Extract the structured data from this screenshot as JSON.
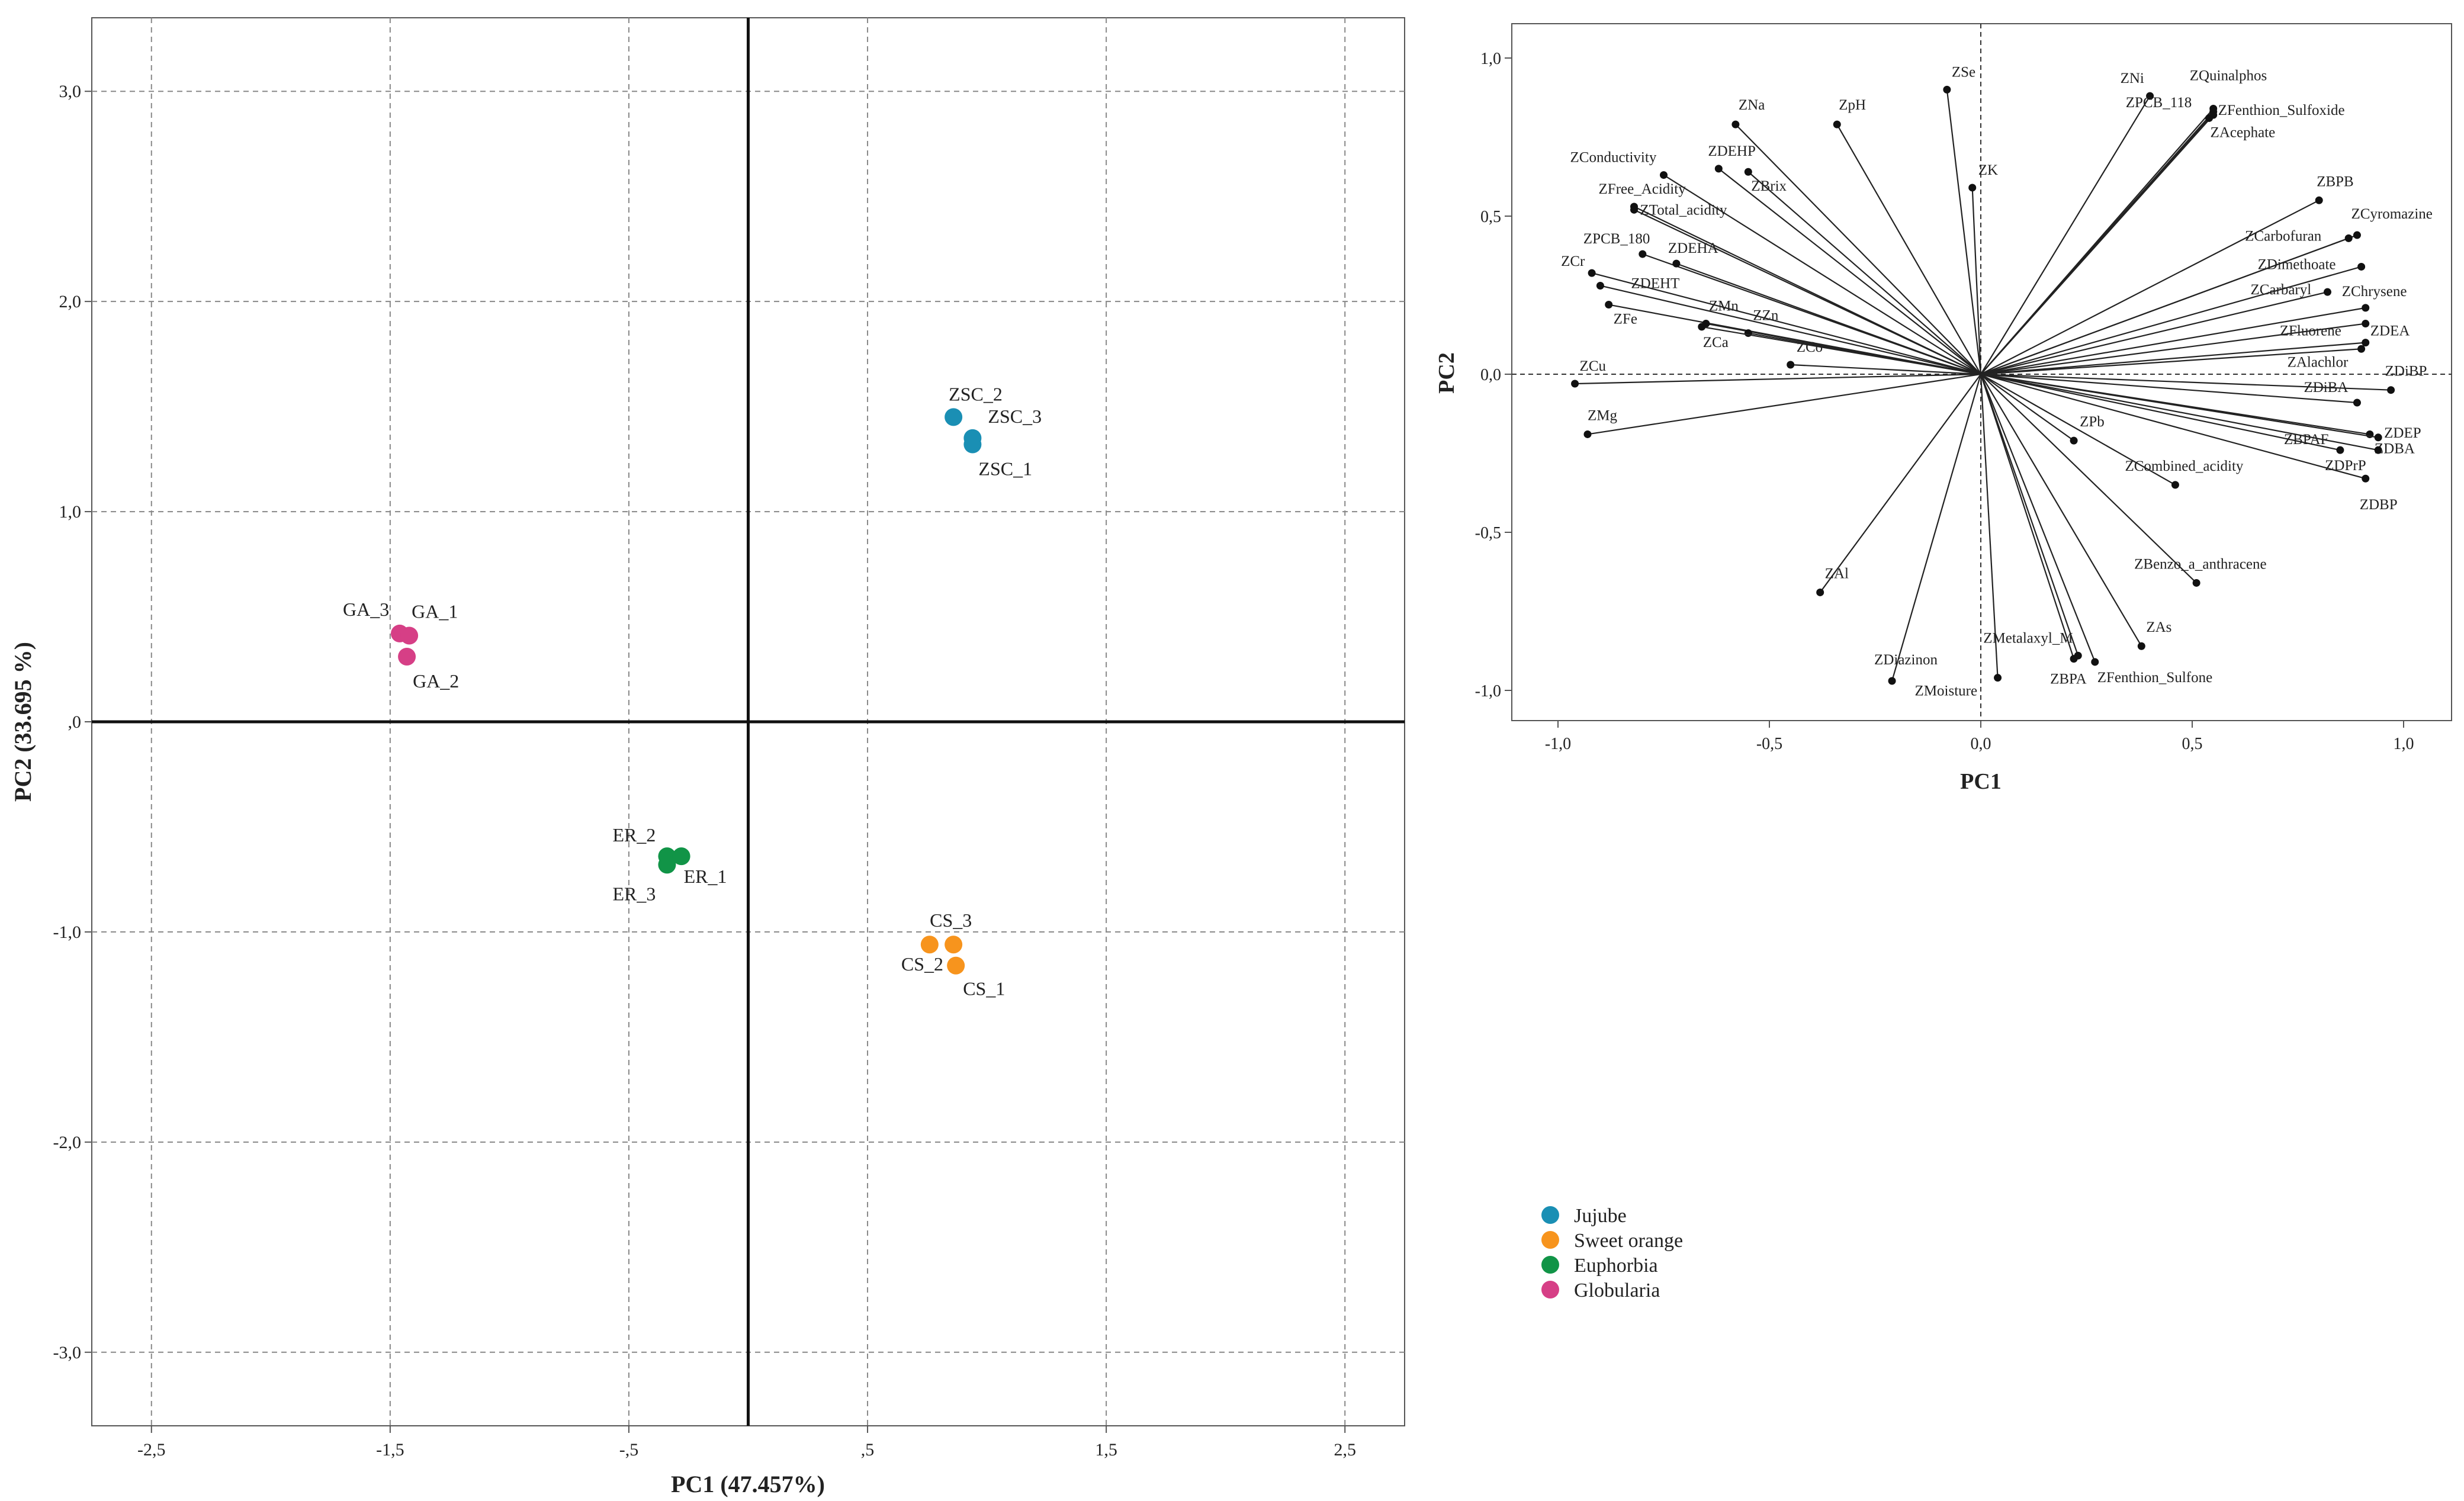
{
  "chart_data": [
    {
      "type": "scatter",
      "name": "scores-plot",
      "xlabel": "PC1 (47.457%)",
      "ylabel": "PC2 (33.695 %)",
      "xlim": [
        -2.75,
        2.75
      ],
      "ylim": [
        -3.35,
        3.35
      ],
      "grid": true,
      "xticks": [
        -2.5,
        -1.5,
        -0.5,
        0.5,
        1.5,
        2.5
      ],
      "xtick_labels": [
        "-2,5",
        "-1,5",
        "-,5",
        ",5",
        "1,5",
        "2,5"
      ],
      "yticks": [
        3,
        2,
        1,
        0,
        -1,
        -2,
        -3
      ],
      "ytick_labels": [
        "3,0",
        "2,0",
        "1,0",
        ",0",
        "-1,0",
        "-2,0",
        "-3,0"
      ],
      "legend_position": "bottom-right, outside plot",
      "series": [
        {
          "name": "Jujube",
          "color": "#1a8fb4",
          "points": [
            {
              "label": "ZSC_2",
              "x": 0.86,
              "y": 1.45
            },
            {
              "label": "ZSC_3",
              "x": 0.94,
              "y": 1.35
            },
            {
              "label": "ZSC_1",
              "x": 0.94,
              "y": 1.32
            }
          ]
        },
        {
          "name": "Sweet orange",
          "color": "#f7941d",
          "points": [
            {
              "label": "CS_3",
              "x": 0.86,
              "y": -1.06
            },
            {
              "label": "CS_2",
              "x": 0.76,
              "y": -1.06
            },
            {
              "label": "CS_1",
              "x": 0.87,
              "y": -1.16
            }
          ]
        },
        {
          "name": "Euphorbia",
          "color": "#119447",
          "points": [
            {
              "label": "ER_2",
              "x": -0.34,
              "y": -0.64
            },
            {
              "label": "ER_1",
              "x": -0.28,
              "y": -0.64
            },
            {
              "label": "ER_3",
              "x": -0.34,
              "y": -0.68
            }
          ]
        },
        {
          "name": "Globularia",
          "color": "#d63f86",
          "points": [
            {
              "label": "GA_3",
              "x": -1.46,
              "y": 0.42
            },
            {
              "label": "GA_1",
              "x": -1.42,
              "y": 0.41
            },
            {
              "label": "GA_2",
              "x": -1.43,
              "y": 0.31
            }
          ]
        }
      ]
    },
    {
      "type": "scatter",
      "name": "loadings-plot",
      "xlabel": "PC1",
      "ylabel": "PC2",
      "xlim": [
        -1.1,
        1.1
      ],
      "ylim": [
        -1.1,
        1.1
      ],
      "grid": false,
      "xticks": [
        -1.0,
        -0.5,
        0.0,
        0.5,
        1.0
      ],
      "xtick_labels": [
        "-1,0",
        "-0,5",
        "0,0",
        "0,5",
        "1,0"
      ],
      "yticks": [
        1.0,
        0.5,
        0.0,
        -0.5,
        -1.0
      ],
      "ytick_labels": [
        "1,0",
        "0,5",
        "0,0",
        "-0,5",
        "-1,0"
      ],
      "vectors": [
        {
          "label": "ZNa",
          "x": -0.58,
          "y": 0.79
        },
        {
          "label": "ZpH",
          "x": -0.34,
          "y": 0.79
        },
        {
          "label": "ZSe",
          "x": -0.08,
          "y": 0.9
        },
        {
          "label": "ZK",
          "x": -0.02,
          "y": 0.59
        },
        {
          "label": "ZNi",
          "x": 0.4,
          "y": 0.88
        },
        {
          "label": "ZQuinalphos",
          "x": 0.55,
          "y": 0.84
        },
        {
          "label": "ZPCB_118",
          "x": 0.55,
          "y": 0.83
        },
        {
          "label": "ZFenthion_Sulfoxide",
          "x": 0.55,
          "y": 0.82
        },
        {
          "label": "ZAcephate",
          "x": 0.54,
          "y": 0.81
        },
        {
          "label": "ZConductivity",
          "x": -0.75,
          "y": 0.63
        },
        {
          "label": "ZDEHP",
          "x": -0.62,
          "y": 0.65
        },
        {
          "label": "ZBrix",
          "x": -0.55,
          "y": 0.64
        },
        {
          "label": "ZFree_Acidity",
          "x": -0.82,
          "y": 0.53
        },
        {
          "label": "ZTotal_acidity",
          "x": -0.82,
          "y": 0.52
        },
        {
          "label": "ZPCB_180",
          "x": -0.8,
          "y": 0.38
        },
        {
          "label": "ZDEHA",
          "x": -0.72,
          "y": 0.35
        },
        {
          "label": "ZCr",
          "x": -0.92,
          "y": 0.32
        },
        {
          "label": "ZDEHT",
          "x": -0.9,
          "y": 0.28
        },
        {
          "label": "ZFe",
          "x": -0.88,
          "y": 0.22
        },
        {
          "label": "ZMn",
          "x": -0.65,
          "y": 0.16
        },
        {
          "label": "ZZn",
          "x": -0.55,
          "y": 0.13
        },
        {
          "label": "ZCa",
          "x": -0.66,
          "y": 0.15
        },
        {
          "label": "ZCo",
          "x": -0.45,
          "y": 0.03
        },
        {
          "label": "ZCu",
          "x": -0.96,
          "y": -0.03
        },
        {
          "label": "ZMg",
          "x": -0.93,
          "y": -0.19
        },
        {
          "label": "ZAl",
          "x": -0.38,
          "y": -0.69
        },
        {
          "label": "ZDiazinon",
          "x": -0.21,
          "y": -0.97
        },
        {
          "label": "ZMoisture",
          "x": 0.04,
          "y": -0.96
        },
        {
          "label": "ZMetalaxyl_M",
          "x": 0.23,
          "y": -0.89
        },
        {
          "label": "ZBPA",
          "x": 0.22,
          "y": -0.9
        },
        {
          "label": "ZFenthion_Sulfone",
          "x": 0.27,
          "y": -0.91
        },
        {
          "label": "ZAs",
          "x": 0.38,
          "y": -0.86
        },
        {
          "label": "ZBenzo_a_anthracene",
          "x": 0.51,
          "y": -0.66
        },
        {
          "label": "ZPb",
          "x": 0.22,
          "y": -0.21
        },
        {
          "label": "ZCombined_acidity",
          "x": 0.46,
          "y": -0.35
        },
        {
          "label": "ZBPB",
          "x": 0.8,
          "y": 0.55
        },
        {
          "label": "ZCyromazine",
          "x": 0.89,
          "y": 0.44
        },
        {
          "label": "ZCarbofuran",
          "x": 0.87,
          "y": 0.43
        },
        {
          "label": "ZDimethoate",
          "x": 0.9,
          "y": 0.34
        },
        {
          "label": "ZCarbaryl",
          "x": 0.82,
          "y": 0.26
        },
        {
          "label": "ZChrysene",
          "x": 0.91,
          "y": 0.21
        },
        {
          "label": "ZFluorene",
          "x": 0.91,
          "y": 0.16
        },
        {
          "label": "ZDEA",
          "x": 0.91,
          "y": 0.1
        },
        {
          "label": "ZAlachlor",
          "x": 0.9,
          "y": 0.08
        },
        {
          "label": "ZDiBP",
          "x": 0.97,
          "y": -0.05
        },
        {
          "label": "ZDiBA",
          "x": 0.89,
          "y": -0.09
        },
        {
          "label": "ZDBA",
          "x": 0.92,
          "y": -0.19
        },
        {
          "label": "ZDEP",
          "x": 0.94,
          "y": -0.2
        },
        {
          "label": "ZBPAF",
          "x": 0.85,
          "y": -0.24
        },
        {
          "label": "ZDPrP",
          "x": 0.94,
          "y": -0.24
        },
        {
          "label": "ZDBP",
          "x": 0.91,
          "y": -0.33
        }
      ]
    }
  ]
}
